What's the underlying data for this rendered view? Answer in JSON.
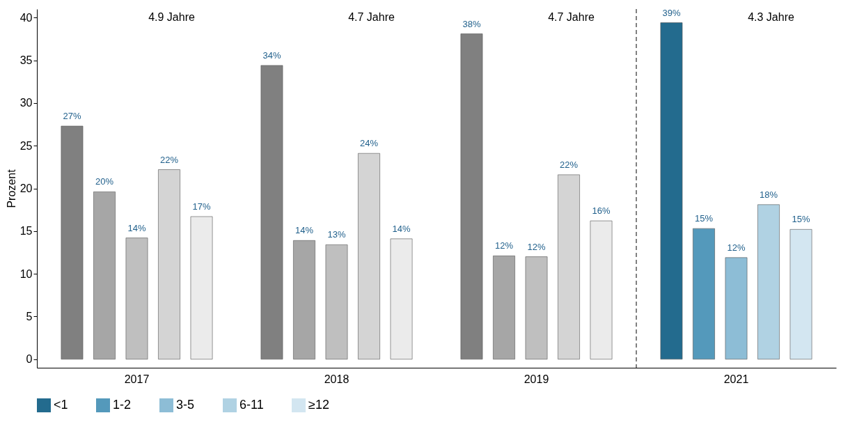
{
  "chart_data": {
    "type": "bar",
    "ylabel": "Prozent",
    "categories": [
      "2017",
      "2018",
      "2019",
      "2021"
    ],
    "series": [
      {
        "name": "<1",
        "color": "#236b8e",
        "colors": [
          "#808080",
          "#808080",
          "#808080",
          "#236b8e"
        ],
        "values": [
          27.3,
          34.4,
          38.1,
          39.4
        ],
        "value_labels": [
          "27%",
          "34%",
          "38%",
          "39%"
        ]
      },
      {
        "name": "1-2",
        "color": "#5499bb",
        "colors": [
          "#a6a6a6",
          "#a6a6a6",
          "#a6a6a6",
          "#5499bb"
        ],
        "values": [
          19.6,
          13.9,
          12.1,
          15.3
        ],
        "value_labels": [
          "20%",
          "14%",
          "12%",
          "15%"
        ]
      },
      {
        "name": "3-5",
        "color": "#8dbdd6",
        "colors": [
          "#bfbfbf",
          "#bfbfbf",
          "#bfbfbf",
          "#8dbdd6"
        ],
        "values": [
          14.2,
          13.4,
          12.0,
          11.9
        ],
        "value_labels": [
          "14%",
          "13%",
          "12%",
          "12%"
        ]
      },
      {
        "name": "6-11",
        "color": "#b0d2e3",
        "colors": [
          "#d4d4d4",
          "#d4d4d4",
          "#d4d4d4",
          "#b0d2e3"
        ],
        "values": [
          22.2,
          24.1,
          21.6,
          18.1
        ],
        "value_labels": [
          "22%",
          "24%",
          "22%",
          "18%"
        ]
      },
      {
        "name": "≥12",
        "color": "#d3e6f1",
        "colors": [
          "#ebebeb",
          "#ebebeb",
          "#ebebeb",
          "#d3e6f1"
        ],
        "values": [
          16.7,
          14.1,
          16.2,
          15.2
        ],
        "value_labels": [
          "17%",
          "14%",
          "16%",
          "15%"
        ]
      }
    ],
    "ylim": [
      -1,
      41
    ],
    "yticks": [
      0,
      5,
      10,
      15,
      20,
      25,
      30,
      35,
      40
    ],
    "annotations": [
      "4.9 Jahre",
      "4.7 Jahre",
      "4.7 Jahre",
      "4.3 Jahre"
    ],
    "grid": false,
    "legend": "bottom"
  }
}
